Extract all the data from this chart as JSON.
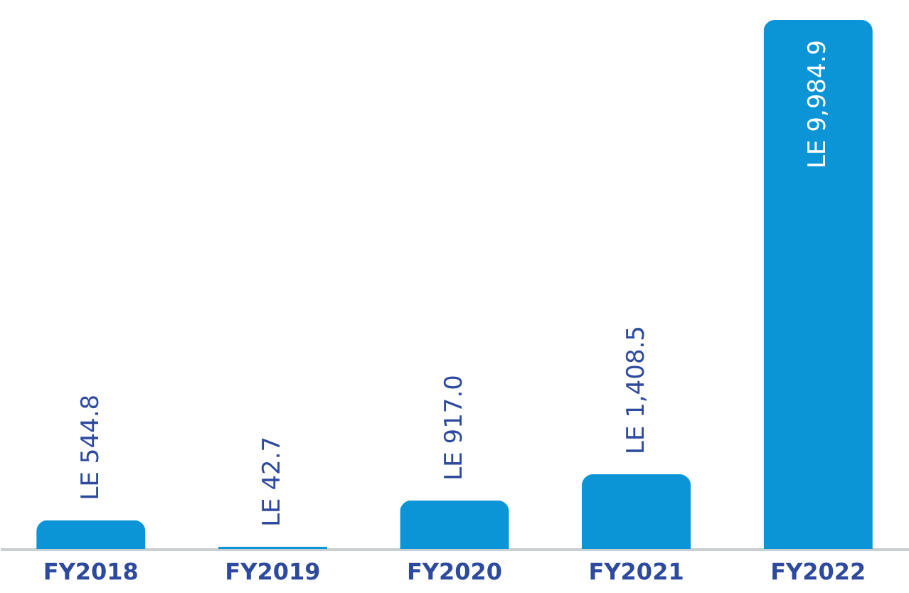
{
  "chart_data": {
    "type": "bar",
    "categories": [
      "FY2018",
      "FY2019",
      "FY2020",
      "FY2021",
      "FY2022"
    ],
    "values": [
      544.8,
      42.7,
      917.0,
      1408.5,
      9984.9
    ],
    "value_labels": [
      "LE 544.8",
      "LE 42.7",
      "LE 917.0",
      "LE 1,408.5",
      "LE 9,984.9"
    ],
    "color": "#0b95d6",
    "grid": false,
    "tick_labels": "x"
  }
}
